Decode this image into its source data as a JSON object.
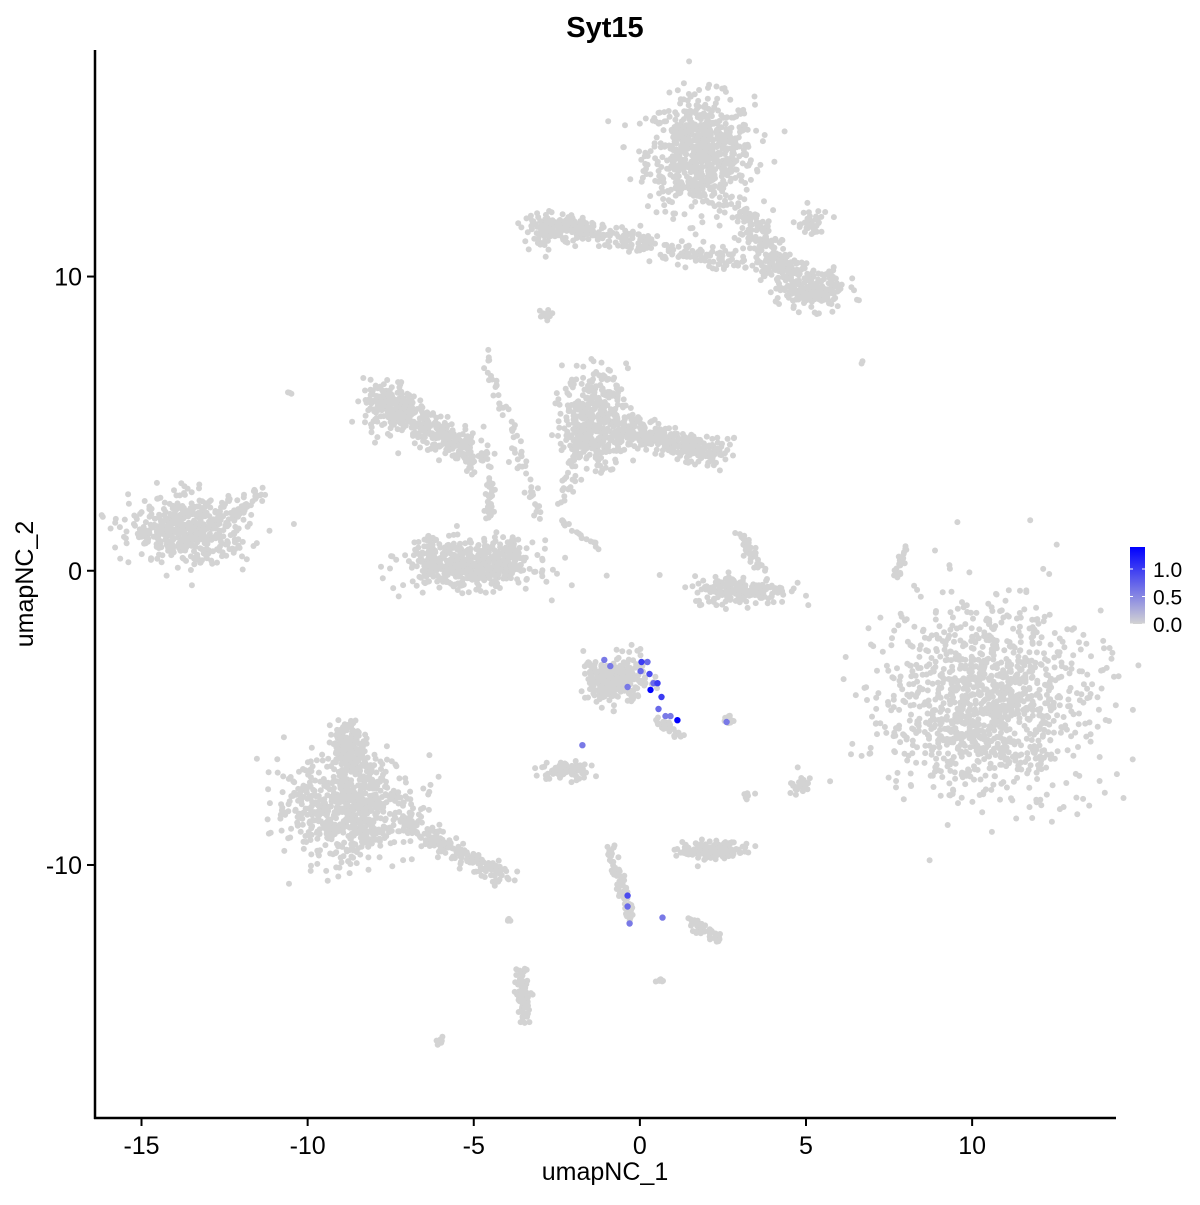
{
  "chart_data": {
    "type": "scatter",
    "title": "Syt15",
    "xlabel": "umapNC_1",
    "ylabel": "umapNC_2",
    "xlim": [
      -16.4,
      14.3
    ],
    "ylim": [
      -18.6,
      17.7
    ],
    "xticks": [
      -15,
      -10,
      -5,
      0,
      5,
      10
    ],
    "yticks": [
      -10,
      0,
      10
    ],
    "grid": false,
    "legend": {
      "placement": "right",
      "type": "colorbar",
      "ticks": [
        1.0,
        0.5,
        0.0
      ],
      "tick_labels": [
        "1.0",
        "0.5",
        "0.0"
      ],
      "range": [
        0,
        1.4
      ],
      "low_color": "#d3d3d3",
      "high_color": "#0000ff"
    },
    "background_point_color": "#d3d3d3",
    "clusters": [
      {
        "kind": "blob",
        "center": [
          1.83,
          14.17
        ],
        "sd": [
          1.0,
          1.2
        ],
        "n": 700
      },
      {
        "kind": "line",
        "from": [
          0.31,
          10.94
        ],
        "to": [
          4.84,
          10.26
        ],
        "width": 0.4,
        "n": 150
      },
      {
        "kind": "line",
        "from": [
          3.03,
          12.3
        ],
        "to": [
          4.84,
          9.23
        ],
        "width": 0.5,
        "n": 200
      },
      {
        "kind": "blob",
        "center": [
          5.29,
          9.57
        ],
        "sd": [
          0.6,
          0.4
        ],
        "n": 150
      },
      {
        "kind": "blob",
        "center": [
          5.14,
          11.79
        ],
        "sd": [
          0.3,
          0.3
        ],
        "n": 40
      },
      {
        "kind": "line",
        "from": [
          -2.85,
          11.79
        ],
        "to": [
          0.32,
          11.1
        ],
        "width": 0.35,
        "n": 200
      },
      {
        "kind": "blob",
        "center": [
          -2.7,
          11.6
        ],
        "sd": [
          0.5,
          0.35
        ],
        "n": 100
      },
      {
        "kind": "blob",
        "center": [
          -2.85,
          8.72
        ],
        "sd": [
          0.2,
          0.1
        ],
        "n": 10
      },
      {
        "kind": "blob",
        "center": [
          -13.55,
          1.4
        ],
        "sd": [
          1.1,
          0.7
        ],
        "n": 500
      },
      {
        "kind": "line",
        "from": [
          -12.35,
          1.74
        ],
        "to": [
          -11.44,
          2.76
        ],
        "width": 0.2,
        "n": 30
      },
      {
        "kind": "line",
        "from": [
          -7.67,
          5.83
        ],
        "to": [
          -4.81,
          3.78
        ],
        "width": 0.6,
        "n": 300
      },
      {
        "kind": "blob",
        "center": [
          -7.52,
          5.49
        ],
        "sd": [
          0.5,
          0.6
        ],
        "n": 150
      },
      {
        "kind": "line",
        "from": [
          -4.66,
          7.53
        ],
        "to": [
          -3.0,
          1.74
        ],
        "width": 0.2,
        "n": 60
      },
      {
        "kind": "blob",
        "center": [
          -5.11,
          0.2
        ],
        "sd": [
          1.2,
          0.5
        ],
        "n": 500
      },
      {
        "kind": "line",
        "from": [
          -6.3,
          1.2
        ],
        "to": [
          -6.3,
          0.1
        ],
        "width": 0.2,
        "n": 40
      },
      {
        "kind": "line",
        "from": [
          -3.9,
          1.2
        ],
        "to": [
          -3.7,
          0.1
        ],
        "width": 0.2,
        "n": 40
      },
      {
        "kind": "line",
        "from": [
          -4.51,
          3.1
        ],
        "to": [
          -4.51,
          1.74
        ],
        "width": 0.15,
        "n": 30
      },
      {
        "kind": "blob",
        "center": [
          -1.34,
          5.14
        ],
        "sd": [
          0.6,
          1.0
        ],
        "n": 400
      },
      {
        "kind": "line",
        "from": [
          -0.59,
          4.8
        ],
        "to": [
          2.43,
          3.95
        ],
        "width": 0.5,
        "n": 300
      },
      {
        "kind": "line",
        "from": [
          -1.79,
          4.46
        ],
        "to": [
          -2.4,
          2.08
        ],
        "width": 0.2,
        "n": 40
      },
      {
        "kind": "line",
        "from": [
          -2.4,
          1.74
        ],
        "to": [
          -1.19,
          0.72
        ],
        "width": 0.1,
        "n": 20
      },
      {
        "kind": "blob",
        "center": [
          3.03,
          -0.65
        ],
        "sd": [
          0.9,
          0.3
        ],
        "n": 200
      },
      {
        "kind": "line",
        "from": [
          3.03,
          1.23
        ],
        "to": [
          3.64,
          0.03
        ],
        "width": 0.2,
        "n": 40
      },
      {
        "kind": "line",
        "from": [
          8.0,
          0.89
        ],
        "to": [
          7.7,
          -0.31
        ],
        "width": 0.1,
        "n": 25
      },
      {
        "kind": "blob",
        "center": [
          10.42,
          -4.4
        ],
        "sd": [
          1.9,
          2.0
        ],
        "n": 1200
      },
      {
        "kind": "blob",
        "center": [
          -8.73,
          -8.14
        ],
        "sd": [
          1.2,
          1.1
        ],
        "n": 700
      },
      {
        "kind": "line",
        "from": [
          -8.88,
          -5.42
        ],
        "to": [
          -8.58,
          -6.78
        ],
        "width": 0.5,
        "n": 200
      },
      {
        "kind": "line",
        "from": [
          -7.22,
          -8.48
        ],
        "to": [
          -3.9,
          -10.53
        ],
        "width": 0.3,
        "n": 200
      },
      {
        "kind": "blob",
        "center": [
          -0.74,
          -3.71
        ],
        "sd": [
          0.6,
          0.5
        ],
        "n": 300
      },
      {
        "kind": "line",
        "from": [
          0.47,
          -5.08
        ],
        "to": [
          1.16,
          -5.59
        ],
        "width": 0.15,
        "n": 30
      },
      {
        "kind": "blob",
        "center": [
          -2.25,
          -6.78
        ],
        "sd": [
          0.4,
          0.2
        ],
        "n": 80
      },
      {
        "kind": "blob",
        "center": [
          2.28,
          -9.5
        ],
        "sd": [
          0.6,
          0.2
        ],
        "n": 150
      },
      {
        "kind": "line",
        "from": [
          -0.89,
          -9.5
        ],
        "to": [
          -0.28,
          -11.89
        ],
        "width": 0.15,
        "n": 80
      },
      {
        "kind": "line",
        "from": [
          1.52,
          -11.89
        ],
        "to": [
          2.43,
          -12.57
        ],
        "width": 0.2,
        "n": 40
      },
      {
        "kind": "line",
        "from": [
          -3.6,
          -13.59
        ],
        "to": [
          -3.45,
          -15.3
        ],
        "width": 0.2,
        "n": 80
      },
      {
        "kind": "blob",
        "center": [
          4.84,
          -7.29
        ],
        "sd": [
          0.2,
          0.2
        ],
        "n": 25
      },
      {
        "kind": "blob",
        "center": [
          2.73,
          -5.08
        ],
        "sd": [
          0.1,
          0.1
        ],
        "n": 8
      },
      {
        "kind": "blob",
        "center": [
          -6.0,
          -15.98
        ],
        "sd": [
          0.1,
          0.1
        ],
        "n": 8
      },
      {
        "kind": "blob",
        "center": [
          -10.53,
          6.06
        ],
        "sd": [
          0.05,
          0.05
        ],
        "n": 3
      },
      {
        "kind": "blob",
        "center": [
          6.71,
          7.09
        ],
        "sd": [
          0.05,
          0.05
        ],
        "n": 2
      },
      {
        "kind": "blob",
        "center": [
          0.62,
          -13.9
        ],
        "sd": [
          0.1,
          0.05
        ],
        "n": 6
      },
      {
        "kind": "blob",
        "center": [
          3.18,
          -7.63
        ],
        "sd": [
          0.15,
          0.1
        ],
        "n": 8
      },
      {
        "kind": "blob",
        "center": [
          -3.9,
          -11.9
        ],
        "sd": [
          0.1,
          0.1
        ],
        "n": 5
      }
    ],
    "expressing_points": [
      {
        "x": -1.07,
        "y": -3.03,
        "value": 0.6
      },
      {
        "x": -0.89,
        "y": -3.24,
        "value": 0.6
      },
      {
        "x": 0.05,
        "y": -3.1,
        "value": 1.0
      },
      {
        "x": 0.23,
        "y": -3.1,
        "value": 0.7
      },
      {
        "x": 0.02,
        "y": -3.41,
        "value": 0.7
      },
      {
        "x": 0.29,
        "y": -3.51,
        "value": 0.9
      },
      {
        "x": 0.41,
        "y": -3.82,
        "value": 0.7
      },
      {
        "x": 0.53,
        "y": -3.82,
        "value": 1.0
      },
      {
        "x": 0.32,
        "y": -4.05,
        "value": 1.4
      },
      {
        "x": 0.65,
        "y": -4.29,
        "value": 1.0
      },
      {
        "x": 0.56,
        "y": -4.7,
        "value": 0.7
      },
      {
        "x": 0.77,
        "y": -4.94,
        "value": 0.6
      },
      {
        "x": 0.92,
        "y": -4.94,
        "value": 0.6
      },
      {
        "x": 1.13,
        "y": -5.08,
        "value": 1.4
      },
      {
        "x": -0.37,
        "y": -3.95,
        "value": 0.6
      },
      {
        "x": 2.61,
        "y": -5.14,
        "value": 0.6
      },
      {
        "x": -1.73,
        "y": -5.93,
        "value": 0.6
      },
      {
        "x": -0.37,
        "y": -11.04,
        "value": 0.9
      },
      {
        "x": -0.37,
        "y": -11.41,
        "value": 0.7
      },
      {
        "x": -0.31,
        "y": -11.99,
        "value": 0.6
      },
      {
        "x": 0.68,
        "y": -11.79,
        "value": 0.6
      }
    ]
  }
}
